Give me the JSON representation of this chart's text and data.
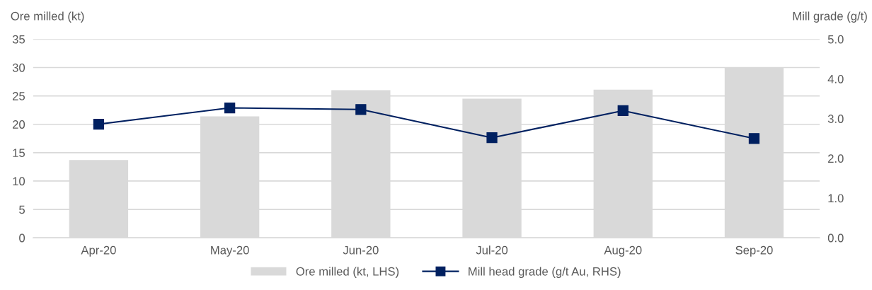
{
  "chart_data": {
    "type": "bar",
    "ylabel": "Ore milled (kt)",
    "y2label": "Mill grade (g/t)",
    "categories": [
      "Apr-20",
      "May-20",
      "Jun-20",
      "Jul-20",
      "Aug-20",
      "Sep-20"
    ],
    "series": [
      {
        "name": "Ore milled (kt, LHS)",
        "color": "#d9d9d9",
        "values": [
          13.7,
          21.4,
          26.0,
          24.5,
          26.1,
          30.0
        ]
      },
      {
        "name": "Mill head grade (g/t Au, RHS)",
        "type": "line",
        "axis": "y2",
        "color": "#002060",
        "marker": "square",
        "values": [
          2.86,
          3.27,
          3.23,
          2.52,
          3.2,
          2.5
        ]
      }
    ],
    "ylim": [
      0,
      35
    ],
    "yticks": [
      0,
      5,
      10,
      15,
      20,
      25,
      30,
      35
    ],
    "y2lim": [
      0,
      5
    ],
    "y2ticks": [
      {
        "value": 0,
        "label": "0.0"
      },
      {
        "value": 1,
        "label": "1.0"
      },
      {
        "value": 2,
        "label": "2.0"
      },
      {
        "value": 3,
        "label": "3.0"
      },
      {
        "value": 4,
        "label": "4.0"
      },
      {
        "value": 5,
        "label": "5.0"
      }
    ],
    "grid": "y",
    "legend": "bottom"
  }
}
